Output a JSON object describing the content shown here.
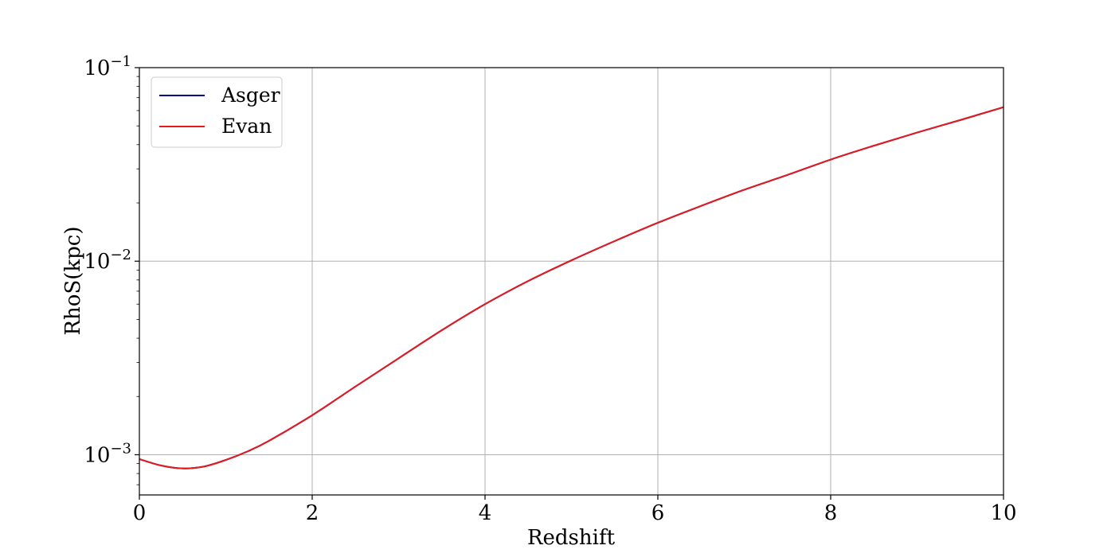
{
  "chart_data": {
    "type": "line",
    "title": "",
    "xlabel": "Redshift",
    "ylabel": "RhoS(kpc)",
    "xlim": [
      0,
      10
    ],
    "ylim": [
      0.00062,
      0.1
    ],
    "yscale": "log",
    "grid": true,
    "legend_position": "top-left",
    "x_ticks": [
      {
        "value": 0,
        "label": "0"
      },
      {
        "value": 2,
        "label": "2"
      },
      {
        "value": 4,
        "label": "4"
      },
      {
        "value": 6,
        "label": "6"
      },
      {
        "value": 8,
        "label": "8"
      },
      {
        "value": 10,
        "label": "10"
      }
    ],
    "y_ticks": [
      {
        "value": 0.001,
        "base": "10",
        "exp": "−3"
      },
      {
        "value": 0.01,
        "base": "10",
        "exp": "−2"
      },
      {
        "value": 0.1,
        "base": "10",
        "exp": "−1"
      }
    ],
    "x": [
      0,
      0.25,
      0.5,
      0.75,
      1,
      1.25,
      1.5,
      2,
      2.5,
      3,
      3.5,
      4,
      4.5,
      5,
      5.5,
      6,
      6.5,
      7,
      7.5,
      8,
      8.5,
      9,
      9.5,
      10
    ],
    "series": [
      {
        "name": "Asger",
        "color": "#00008b",
        "values": [
          0.00095,
          0.00088,
          0.00085,
          0.00087,
          0.00094,
          0.00104,
          0.00118,
          0.0016,
          0.00225,
          0.00315,
          0.0044,
          0.006,
          0.0079,
          0.0101,
          0.0127,
          0.0158,
          0.0193,
          0.0234,
          0.0279,
          0.0335,
          0.0395,
          0.0462,
          0.0536,
          0.0625
        ]
      },
      {
        "name": "Evan",
        "color": "#e41a1c",
        "values": [
          0.00095,
          0.00088,
          0.00085,
          0.00087,
          0.00094,
          0.00104,
          0.00118,
          0.0016,
          0.00225,
          0.00315,
          0.0044,
          0.006,
          0.0079,
          0.0101,
          0.0127,
          0.0158,
          0.0193,
          0.0234,
          0.0279,
          0.0335,
          0.0395,
          0.0462,
          0.0536,
          0.0625
        ]
      }
    ]
  }
}
